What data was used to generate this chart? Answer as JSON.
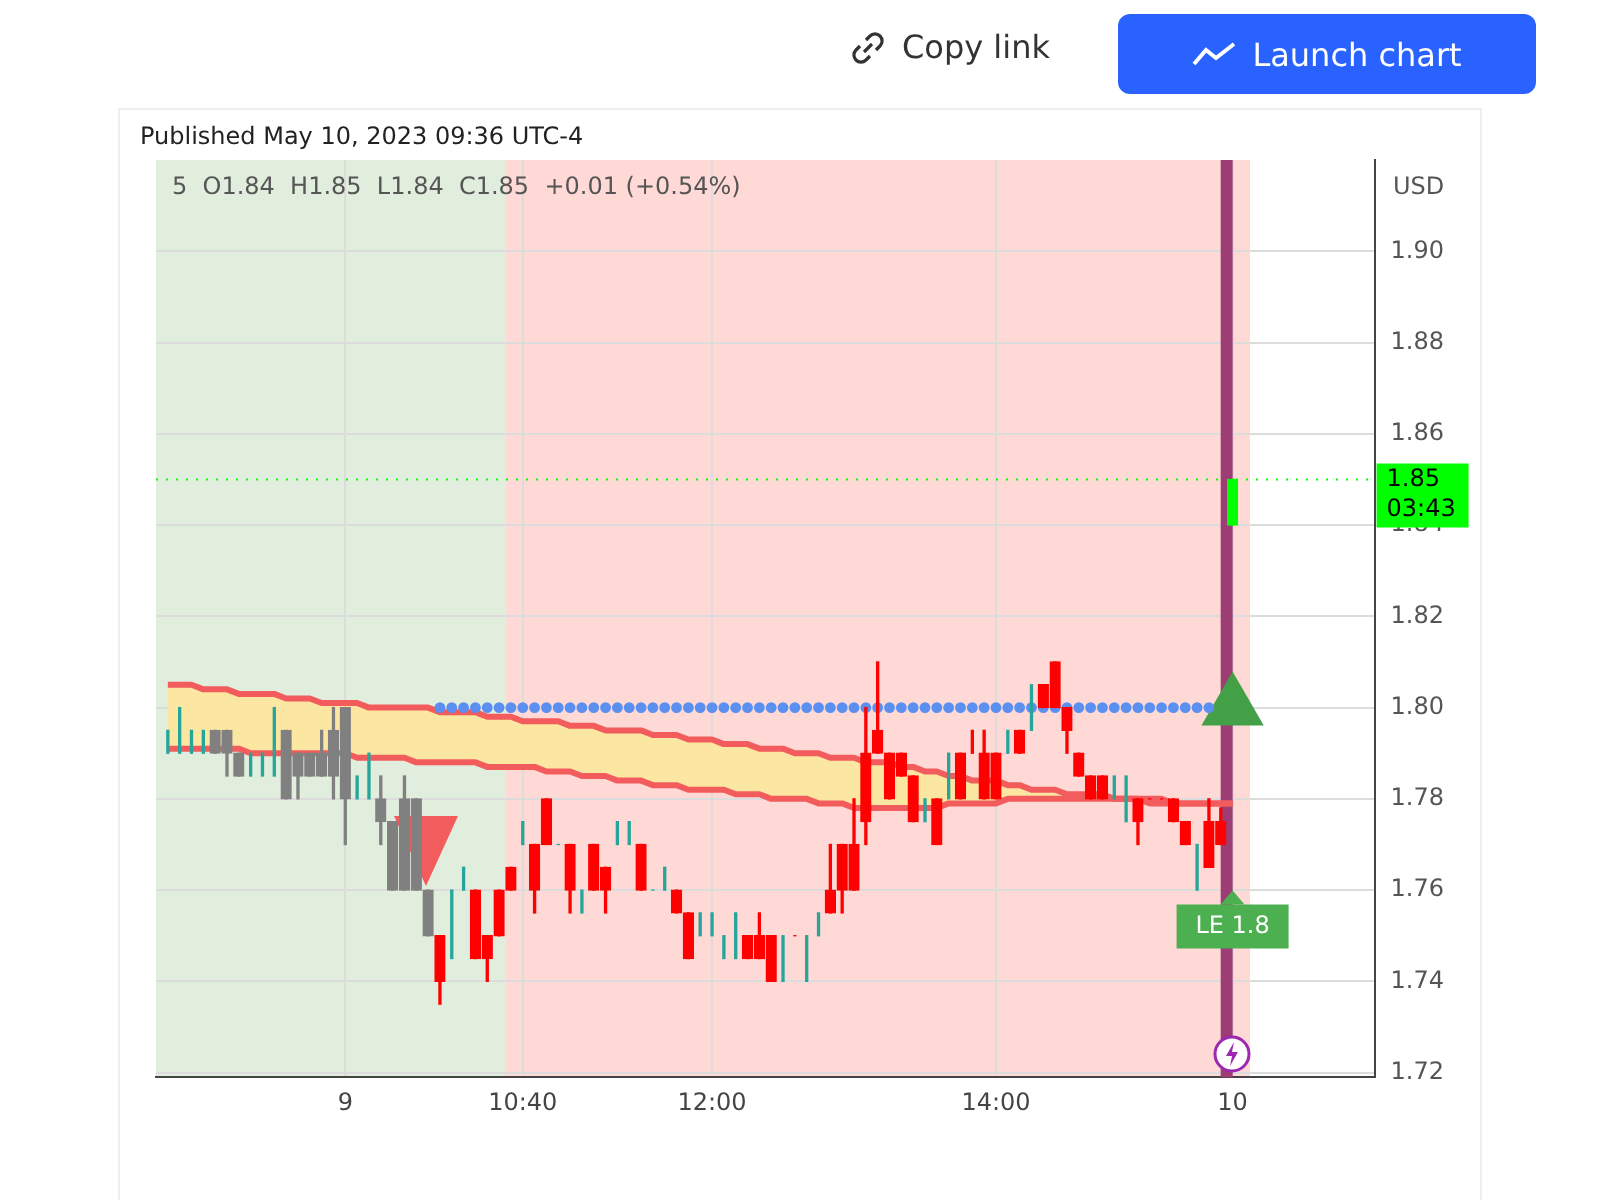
{
  "chart_data": {
    "type": "candlestick",
    "title": "5  O1.84  H1.85  L1.84  C1.85  +0.01 (+0.54%)",
    "subtitle": "Published May 10, 2023 09:36 UTC-4",
    "ylabel": "USD",
    "categories": [
      null,
      null,
      null,
      null,
      null,
      null,
      null,
      null,
      null,
      null,
      null,
      null,
      null,
      null,
      null,
      "9",
      null,
      null,
      null,
      null,
      null,
      null,
      null,
      null,
      null,
      null,
      null,
      null,
      null,
      null,
      "10:40",
      null,
      null,
      null,
      null,
      null,
      null,
      null,
      null,
      null,
      null,
      null,
      null,
      null,
      null,
      null,
      "12:00",
      null,
      null,
      null,
      null,
      null,
      null,
      null,
      null,
      null,
      null,
      null,
      null,
      null,
      null,
      null,
      null,
      null,
      null,
      null,
      null,
      null,
      null,
      null,
      "14:00",
      null,
      null,
      null,
      null,
      null,
      null,
      null,
      null,
      null,
      null,
      null,
      null,
      null,
      null,
      null,
      null,
      null,
      null,
      null,
      "10"
    ],
    "ohlc": [
      [
        1.795,
        1.795,
        1.79,
        1.795
      ],
      [
        1.795,
        1.8,
        1.79,
        1.795
      ],
      [
        1.795,
        1.795,
        1.79,
        1.795
      ],
      [
        1.795,
        1.795,
        1.79,
        1.795
      ],
      [
        1.795,
        1.795,
        1.79,
        1.79
      ],
      [
        1.795,
        1.795,
        1.785,
        1.79
      ],
      [
        1.79,
        1.79,
        1.785,
        1.785
      ],
      [
        1.79,
        1.79,
        1.785,
        1.79
      ],
      [
        1.79,
        1.79,
        1.785,
        1.79
      ],
      [
        1.79,
        1.8,
        1.785,
        1.79
      ],
      [
        1.795,
        1.795,
        1.78,
        1.78
      ],
      [
        1.79,
        1.79,
        1.78,
        1.785
      ],
      [
        1.79,
        1.79,
        1.785,
        1.785
      ],
      [
        1.79,
        1.795,
        1.785,
        1.785
      ],
      [
        1.795,
        1.8,
        1.78,
        1.785
      ],
      [
        1.8,
        1.8,
        1.77,
        1.78
      ],
      [
        1.78,
        1.785,
        1.78,
        1.78
      ],
      [
        1.78,
        1.79,
        1.78,
        1.78
      ],
      [
        1.78,
        1.785,
        1.77,
        1.775
      ],
      [
        1.775,
        1.775,
        1.76,
        1.76
      ],
      [
        1.78,
        1.785,
        1.76,
        1.76
      ],
      [
        1.78,
        1.78,
        1.76,
        1.76
      ],
      [
        1.76,
        1.76,
        1.75,
        1.75
      ],
      [
        1.75,
        1.75,
        1.735,
        1.74
      ],
      [
        1.75,
        1.76,
        1.745,
        1.75
      ],
      [
        1.76,
        1.765,
        1.76,
        1.76
      ],
      [
        1.76,
        1.76,
        1.745,
        1.745
      ],
      [
        1.75,
        1.75,
        1.74,
        1.745
      ],
      [
        1.76,
        1.76,
        1.75,
        1.75
      ],
      [
        1.765,
        1.765,
        1.76,
        1.76
      ],
      [
        1.77,
        1.775,
        1.77,
        1.77
      ],
      [
        1.77,
        1.77,
        1.755,
        1.76
      ],
      [
        1.78,
        1.78,
        1.77,
        1.77
      ],
      [
        1.77,
        1.77,
        1.77,
        1.77
      ],
      [
        1.77,
        1.77,
        1.755,
        1.76
      ],
      [
        1.76,
        1.76,
        1.755,
        1.76
      ],
      [
        1.77,
        1.77,
        1.76,
        1.76
      ],
      [
        1.765,
        1.765,
        1.755,
        1.76
      ],
      [
        1.775,
        1.775,
        1.77,
        1.775
      ],
      [
        1.775,
        1.775,
        1.77,
        1.775
      ],
      [
        1.77,
        1.77,
        1.76,
        1.76
      ],
      [
        1.76,
        1.76,
        1.76,
        1.76
      ],
      [
        1.76,
        1.765,
        1.76,
        1.76
      ],
      [
        1.76,
        1.76,
        1.755,
        1.755
      ],
      [
        1.755,
        1.755,
        1.745,
        1.745
      ],
      [
        1.75,
        1.755,
        1.75,
        1.75
      ],
      [
        1.75,
        1.755,
        1.75,
        1.75
      ],
      [
        1.75,
        1.75,
        1.745,
        1.75
      ],
      [
        1.75,
        1.755,
        1.745,
        1.75
      ],
      [
        1.75,
        1.75,
        1.745,
        1.745
      ],
      [
        1.75,
        1.755,
        1.745,
        1.745
      ],
      [
        1.75,
        1.75,
        1.74,
        1.74
      ],
      [
        1.75,
        1.75,
        1.74,
        1.75
      ],
      [
        1.75,
        1.75,
        1.75,
        1.75
      ],
      [
        1.75,
        1.75,
        1.74,
        1.75
      ],
      [
        1.755,
        1.755,
        1.75,
        1.755
      ],
      [
        1.76,
        1.77,
        1.755,
        1.755
      ],
      [
        1.77,
        1.77,
        1.755,
        1.76
      ],
      [
        1.77,
        1.78,
        1.76,
        1.76
      ],
      [
        1.79,
        1.8,
        1.77,
        1.775
      ],
      [
        1.795,
        1.81,
        1.79,
        1.79
      ],
      [
        1.79,
        1.79,
        1.78,
        1.78
      ],
      [
        1.79,
        1.79,
        1.785,
        1.785
      ],
      [
        1.785,
        1.785,
        1.775,
        1.775
      ],
      [
        1.78,
        1.78,
        1.775,
        1.78
      ],
      [
        1.78,
        1.78,
        1.77,
        1.77
      ],
      [
        1.785,
        1.79,
        1.78,
        1.785
      ],
      [
        1.79,
        1.79,
        1.78,
        1.78
      ],
      [
        1.795,
        1.795,
        1.79,
        1.795
      ],
      [
        1.79,
        1.795,
        1.78,
        1.78
      ],
      [
        1.79,
        1.79,
        1.78,
        1.78
      ],
      [
        1.79,
        1.795,
        1.79,
        1.79
      ],
      [
        1.795,
        1.795,
        1.79,
        1.79
      ],
      [
        1.795,
        1.805,
        1.795,
        1.795
      ],
      [
        1.805,
        1.805,
        1.8,
        1.8
      ],
      [
        1.81,
        1.81,
        1.8,
        1.8
      ],
      [
        1.8,
        1.8,
        1.79,
        1.795
      ],
      [
        1.79,
        1.79,
        1.785,
        1.785
      ],
      [
        1.785,
        1.785,
        1.78,
        1.78
      ],
      [
        1.785,
        1.785,
        1.78,
        1.78
      ],
      [
        1.78,
        1.785,
        1.78,
        1.78
      ],
      [
        1.78,
        1.785,
        1.775,
        1.78
      ],
      [
        1.78,
        1.78,
        1.77,
        1.775
      ],
      [
        1.78,
        1.78,
        1.78,
        1.78
      ],
      [
        1.78,
        1.78,
        1.78,
        1.78
      ],
      [
        1.78,
        1.78,
        1.775,
        1.775
      ],
      [
        1.775,
        1.775,
        1.77,
        1.77
      ],
      [
        1.77,
        1.77,
        1.76,
        1.77
      ],
      [
        1.775,
        1.78,
        1.765,
        1.765
      ],
      [
        1.775,
        1.778,
        1.77,
        1.77
      ],
      [
        1.84,
        1.85,
        1.84,
        1.85
      ]
    ],
    "colors": [
      "#26a69a",
      "#26a69a",
      "#26a69a",
      "#26a69a",
      "#808080",
      "#808080",
      "#808080",
      "#26a69a",
      "#26a69a",
      "#26a69a",
      "#808080",
      "#808080",
      "#808080",
      "#808080",
      "#808080",
      "#808080",
      "#26a69a",
      "#26a69a",
      "#808080",
      "#808080",
      "#808080",
      "#808080",
      "#808080",
      "#ff0000",
      "#26a69a",
      "#26a69a",
      "#ff0000",
      "#ff0000",
      "#ff0000",
      "#ff0000",
      "#26a69a",
      "#ff0000",
      "#ff0000",
      "#26a69a",
      "#ff0000",
      "#26a69a",
      "#ff0000",
      "#ff0000",
      "#26a69a",
      "#26a69a",
      "#ff0000",
      "#26a69a",
      "#26a69a",
      "#ff0000",
      "#ff0000",
      "#26a69a",
      "#26a69a",
      "#26a69a",
      "#26a69a",
      "#ff0000",
      "#ff0000",
      "#ff0000",
      "#26a69a",
      "#ff0000",
      "#26a69a",
      "#26a69a",
      "#ff0000",
      "#ff0000",
      "#ff0000",
      "#ff0000",
      "#ff0000",
      "#ff0000",
      "#ff0000",
      "#ff0000",
      "#26a69a",
      "#ff0000",
      "#26a69a",
      "#ff0000",
      "#ff0000",
      "#ff0000",
      "#ff0000",
      "#26a69a",
      "#ff0000",
      "#26a69a",
      "#ff0000",
      "#ff0000",
      "#ff0000",
      "#ff0000",
      "#ff0000",
      "#ff0000",
      "#26a69a",
      "#26a69a",
      "#ff0000",
      "#ff0000",
      "#ff0000",
      "#ff0000",
      "#ff0000",
      "#26a69a",
      "#ff0000",
      "#ff0000",
      "#00ff00"
    ],
    "series": [
      {
        "type": "line",
        "color": "#f25c5c",
        "values": [
          1.805,
          1.805,
          1.805,
          1.804,
          1.804,
          1.804,
          1.803,
          1.803,
          1.803,
          1.803,
          1.802,
          1.802,
          1.802,
          1.801,
          1.801,
          1.801,
          1.801,
          1.8,
          1.8,
          1.8,
          1.8,
          1.8,
          1.8,
          1.799,
          1.799,
          1.799,
          1.799,
          1.798,
          1.798,
          1.798,
          1.797,
          1.797,
          1.797,
          1.797,
          1.796,
          1.796,
          1.796,
          1.795,
          1.795,
          1.795,
          1.795,
          1.794,
          1.794,
          1.794,
          1.793,
          1.793,
          1.793,
          1.792,
          1.792,
          1.792,
          1.791,
          1.791,
          1.791,
          1.79,
          1.79,
          1.79,
          1.789,
          1.789,
          1.789,
          1.788,
          1.788,
          1.788,
          1.787,
          1.787,
          1.786,
          1.786,
          1.785,
          1.785,
          1.784,
          1.784,
          1.784,
          1.783,
          1.783,
          1.782,
          1.782,
          1.782,
          1.781,
          1.781,
          1.781,
          1.781,
          1.78,
          1.78,
          1.78,
          1.78,
          1.78,
          1.779,
          1.779,
          1.779,
          1.779,
          1.779,
          1.779
        ],
        "lower": [
          1.791,
          1.791,
          1.791,
          1.791,
          1.791,
          1.791,
          1.791,
          1.79,
          1.79,
          1.79,
          1.79,
          1.79,
          1.79,
          1.79,
          1.79,
          1.79,
          1.789,
          1.789,
          1.789,
          1.789,
          1.789,
          1.788,
          1.788,
          1.788,
          1.788,
          1.788,
          1.788,
          1.787,
          1.787,
          1.787,
          1.787,
          1.787,
          1.786,
          1.786,
          1.786,
          1.785,
          1.785,
          1.785,
          1.784,
          1.784,
          1.784,
          1.783,
          1.783,
          1.783,
          1.782,
          1.782,
          1.782,
          1.782,
          1.781,
          1.781,
          1.781,
          1.78,
          1.78,
          1.78,
          1.78,
          1.779,
          1.779,
          1.779,
          1.778,
          1.778,
          1.778,
          1.778,
          1.778,
          1.778,
          1.778,
          1.778,
          1.779,
          1.779,
          1.779,
          1.779,
          1.779,
          1.78,
          1.78,
          1.78,
          1.78,
          1.78,
          1.78,
          1.78,
          1.78,
          1.78,
          1.78,
          1.78,
          1.78,
          1.779,
          1.779,
          1.779,
          1.779,
          1.779,
          1.779,
          1.779,
          1.779
        ],
        "upper": [
          1.805,
          1.805,
          1.805,
          1.804,
          1.804,
          1.804,
          1.803,
          1.803,
          1.803,
          1.803,
          1.802,
          1.802,
          1.802,
          1.801,
          1.801,
          1.801,
          1.801,
          1.8,
          1.8,
          1.8,
          1.8,
          1.8,
          1.8,
          1.799,
          1.799,
          1.799,
          1.799,
          1.798,
          1.798,
          1.798,
          1.797,
          1.797,
          1.797,
          1.797,
          1.796,
          1.796,
          1.796,
          1.795,
          1.795,
          1.795,
          1.795,
          1.794,
          1.794,
          1.794,
          1.793,
          1.793,
          1.793,
          1.792,
          1.792,
          1.792,
          1.791,
          1.791,
          1.791,
          1.79,
          1.79,
          1.79,
          1.789,
          1.789,
          1.789,
          1.788,
          1.788,
          1.788,
          1.787,
          1.787,
          1.786,
          1.786,
          1.785,
          1.785,
          1.784,
          1.784,
          1.784,
          1.783,
          1.783,
          1.782,
          1.782,
          1.782,
          1.781,
          1.781,
          1.781,
          1.781,
          1.78,
          1.78,
          1.78,
          1.78,
          1.78,
          1.779,
          1.779,
          1.779,
          1.779,
          1.779,
          1.779
        ]
      },
      {
        "type": "line",
        "color": "#f25c5c",
        "values": [
          1.791,
          1.791,
          1.791,
          1.791,
          1.791,
          1.791,
          1.791,
          1.79,
          1.79,
          1.79,
          1.79,
          1.79,
          1.79,
          1.79,
          1.79,
          1.79,
          1.789,
          1.789,
          1.789,
          1.789,
          1.789,
          1.788,
          1.788,
          1.788,
          1.788,
          1.788,
          1.788,
          1.787,
          1.787,
          1.787,
          1.787,
          1.787,
          1.786,
          1.786,
          1.786,
          1.785,
          1.785,
          1.785,
          1.784,
          1.784,
          1.784,
          1.783,
          1.783,
          1.783,
          1.782,
          1.782,
          1.782,
          1.782,
          1.781,
          1.781,
          1.781,
          1.78,
          1.78,
          1.78,
          1.78,
          1.779,
          1.779,
          1.779,
          1.778,
          1.778,
          1.778,
          1.778,
          1.778,
          1.778,
          1.778,
          1.778,
          1.779,
          1.779,
          1.779,
          1.779,
          1.779,
          1.78,
          1.78,
          1.78,
          1.78,
          1.78,
          1.78,
          1.78,
          1.78,
          1.78,
          1.78,
          1.78,
          1.78,
          1.779,
          1.779,
          1.779,
          1.779,
          1.779,
          1.779,
          1.779,
          1.779
        ]
      },
      {
        "type": "scatter",
        "color": "#5b8ff0",
        "marker": "circle",
        "values": [
          null,
          null,
          null,
          null,
          null,
          null,
          null,
          null,
          null,
          null,
          null,
          null,
          null,
          null,
          null,
          null,
          null,
          null,
          null,
          null,
          null,
          null,
          null,
          1.8,
          1.8,
          1.8,
          1.8,
          1.8,
          1.8,
          1.8,
          1.8,
          1.8,
          1.8,
          1.8,
          1.8,
          1.8,
          1.8,
          1.8,
          1.8,
          1.8,
          1.8,
          1.8,
          1.8,
          1.8,
          1.8,
          1.8,
          1.8,
          1.8,
          1.8,
          1.8,
          1.8,
          1.8,
          1.8,
          1.8,
          1.8,
          1.8,
          1.8,
          1.8,
          1.8,
          1.8,
          1.8,
          1.8,
          1.8,
          1.8,
          1.8,
          1.8,
          1.8,
          1.8,
          1.8,
          1.8,
          1.8,
          1.8,
          1.8,
          1.8,
          1.8,
          1.8,
          1.8,
          1.8,
          1.8,
          1.8,
          1.8,
          1.8,
          1.8,
          1.8,
          1.8,
          1.8,
          1.8,
          1.8,
          1.8,
          null,
          null
        ]
      },
      {
        "type": "scatter",
        "color": "#43a047",
        "marker": "triangle",
        "values": [
          null,
          null,
          null,
          null,
          null,
          null,
          null,
          null,
          null,
          null,
          null,
          null,
          null,
          null,
          null,
          null,
          null,
          null,
          null,
          null,
          null,
          null,
          null,
          null,
          null,
          null,
          null,
          null,
          null,
          null,
          null,
          null,
          null,
          null,
          null,
          null,
          null,
          null,
          null,
          null,
          null,
          null,
          null,
          null,
          null,
          null,
          null,
          null,
          null,
          null,
          null,
          null,
          null,
          null,
          null,
          null,
          null,
          null,
          null,
          null,
          null,
          null,
          null,
          null,
          null,
          null,
          null,
          null,
          null,
          null,
          null,
          null,
          null,
          null,
          null,
          null,
          null,
          null,
          null,
          null,
          null,
          null,
          null,
          null,
          null,
          null,
          null,
          null,
          null,
          null,
          1.8
        ]
      }
    ],
    "ylim": [
      1.719,
      1.92
    ],
    "yticks": [
      1.72,
      1.74,
      1.76,
      1.78,
      {
        "value": 1.8,
        "label": "1.80"
      },
      1.82,
      1.84,
      1.86,
      1.88,
      {
        "value": 1.9,
        "label": "1.90"
      }
    ],
    "grid": true,
    "legend": false,
    "ref_lines": [
      {
        "axis": "y",
        "value": 1.85,
        "label": "1.85",
        "color": "#00ff00",
        "line_style": "dotted"
      },
      {
        "axis": "x",
        "value": "10",
        "color": "#9c3d74"
      }
    ],
    "annotations": [
      {
        "text": "LE 1.8",
        "x": "10",
        "y": 1.752
      },
      "03:43",
      "Copy link",
      "Launch chart"
    ]
  }
}
